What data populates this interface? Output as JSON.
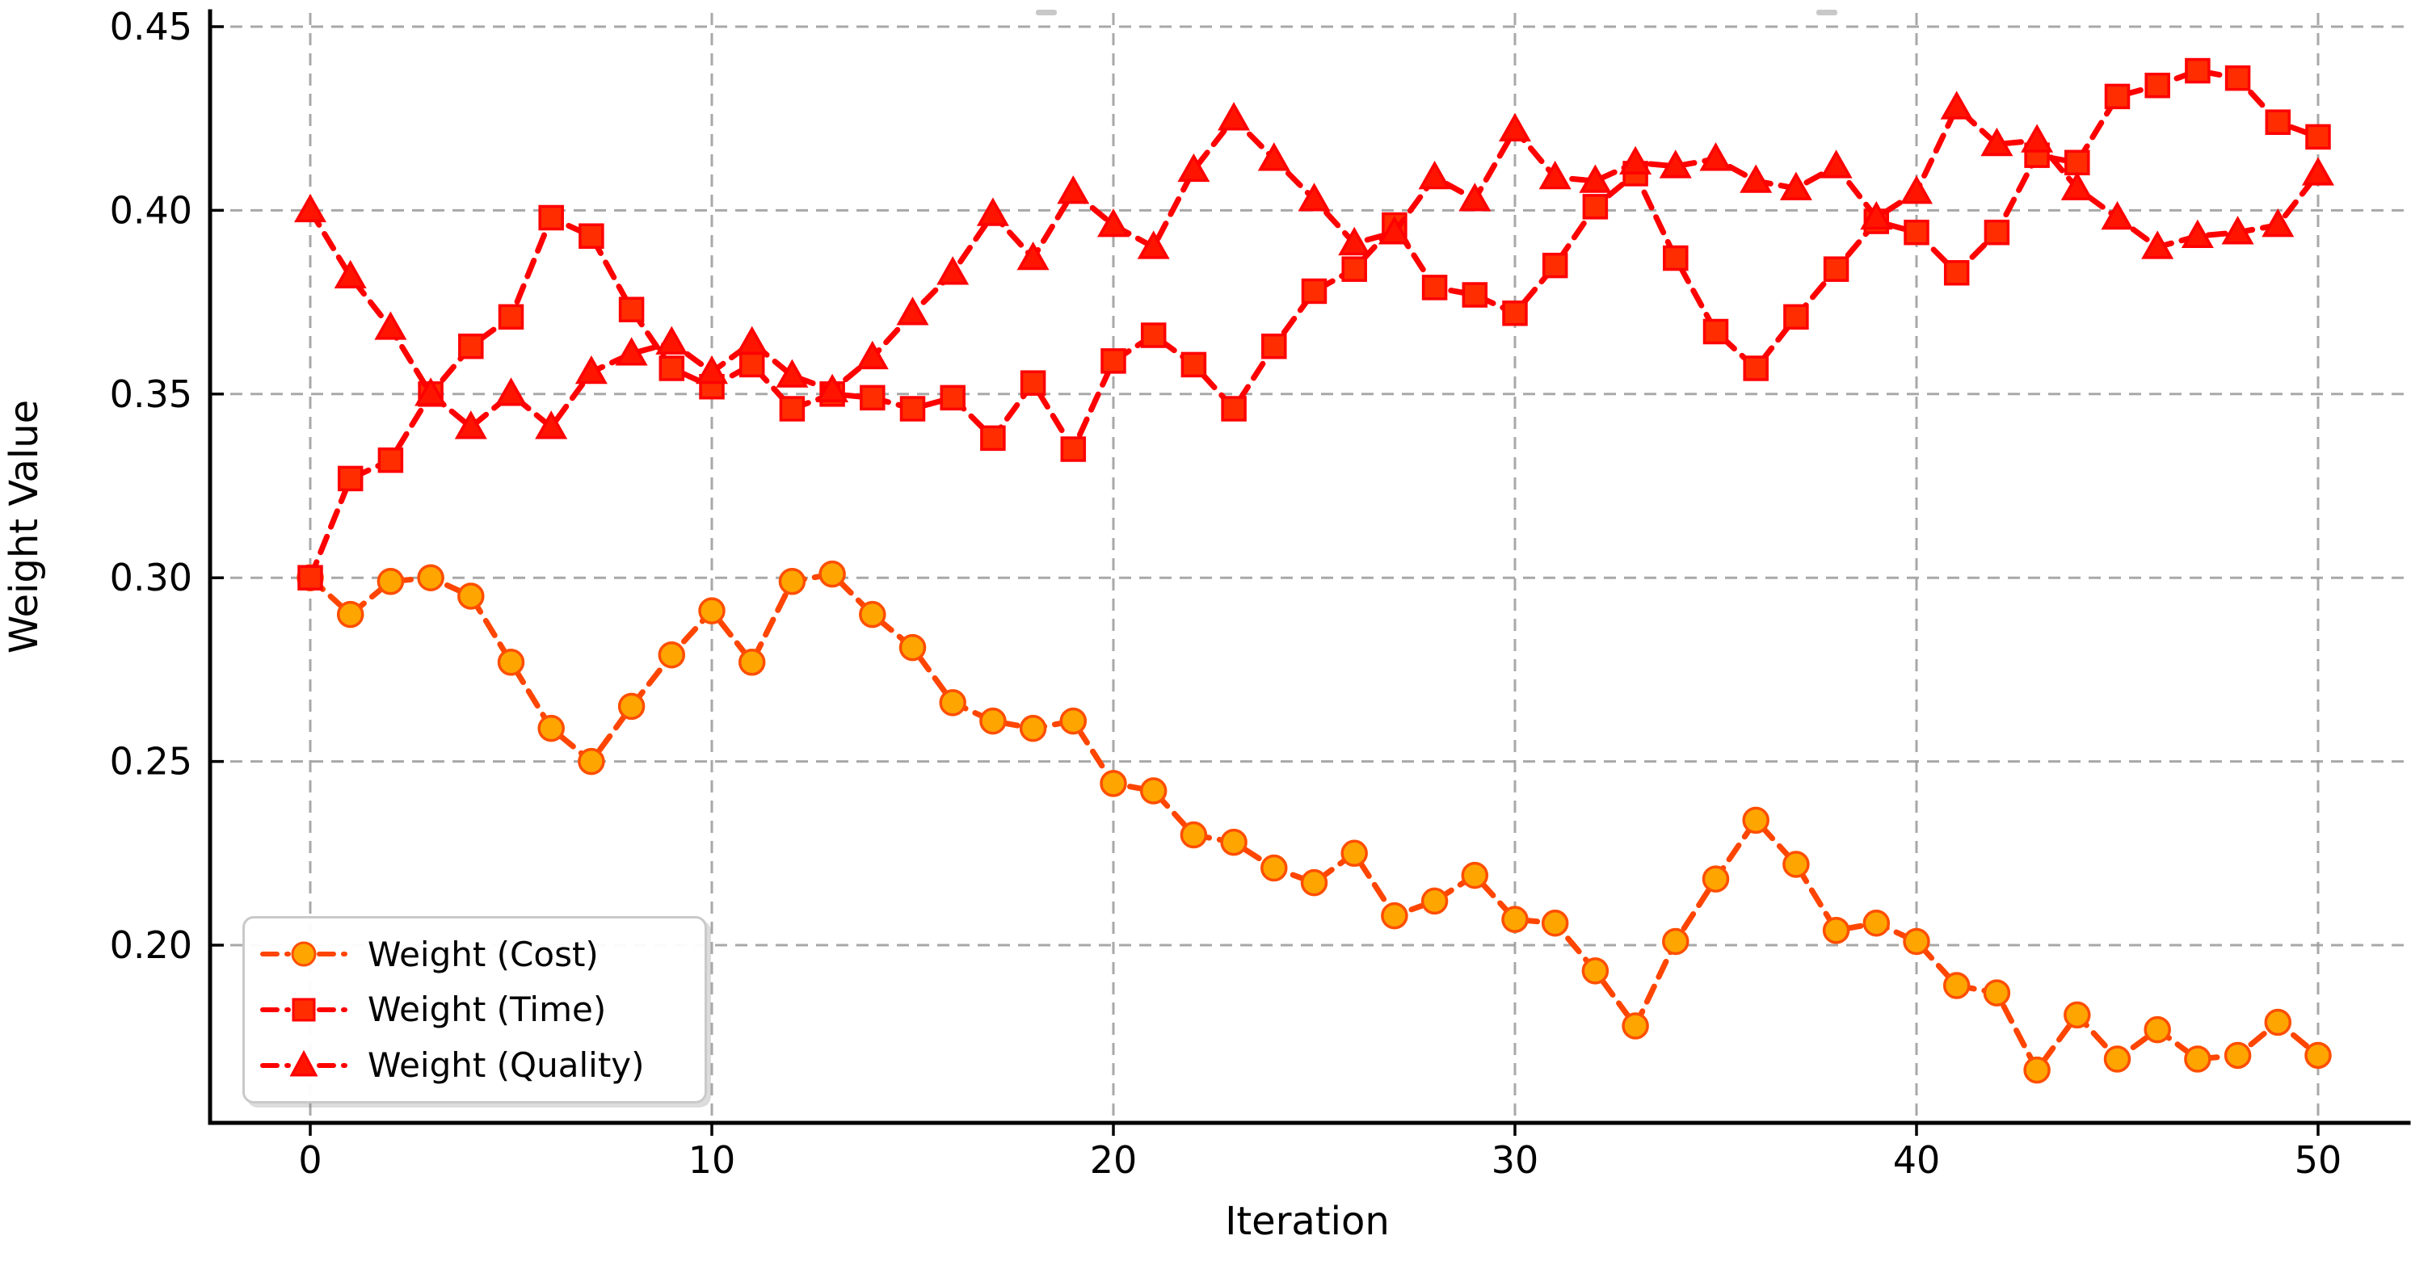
{
  "chart_data": {
    "type": "line",
    "title": "",
    "xlabel": "Iteration",
    "ylabel": "Weight Value",
    "x": [
      0,
      1,
      2,
      3,
      4,
      5,
      6,
      7,
      8,
      9,
      10,
      11,
      12,
      13,
      14,
      15,
      16,
      17,
      18,
      19,
      20,
      21,
      22,
      23,
      24,
      25,
      26,
      27,
      28,
      29,
      30,
      31,
      32,
      33,
      34,
      35,
      36,
      37,
      38,
      39,
      40,
      41,
      42,
      43,
      44,
      45,
      46,
      47,
      48,
      49,
      50
    ],
    "xticks": [
      0,
      10,
      20,
      30,
      40,
      50
    ],
    "yticks": [
      0.2,
      0.25,
      0.3,
      0.35,
      0.4,
      0.45
    ],
    "ytick_labels": [
      "0.20",
      "0.25",
      "0.30",
      "0.35",
      "0.40",
      "0.45"
    ],
    "xlim": [
      -2.5,
      52.2
    ],
    "ylim": [
      0.152,
      0.453
    ],
    "grid": true,
    "grid_style": "dashed",
    "legend_position": "lower left",
    "series": [
      {
        "id": "cost",
        "name": "Weight (Cost)",
        "marker": "circle",
        "line_color": "#FF4500",
        "marker_fill": "#FFA500",
        "marker_edge": "#FF4E00",
        "values": [
          0.3,
          0.29,
          0.299,
          0.3,
          0.295,
          0.277,
          0.259,
          0.25,
          0.265,
          0.279,
          0.291,
          0.277,
          0.299,
          0.301,
          0.29,
          0.281,
          0.266,
          0.261,
          0.259,
          0.261,
          0.244,
          0.242,
          0.23,
          0.228,
          0.221,
          0.217,
          0.225,
          0.208,
          0.212,
          0.219,
          0.207,
          0.206,
          0.193,
          0.178,
          0.201,
          0.218,
          0.234,
          0.222,
          0.204,
          0.206,
          0.201,
          0.189,
          0.187,
          0.166,
          0.181,
          0.169,
          0.177,
          0.169,
          0.17,
          0.179,
          0.17
        ]
      },
      {
        "id": "time",
        "name": "Weight (Time)",
        "marker": "square",
        "line_color": "#FF0000",
        "marker_fill": "#FF2D00",
        "marker_edge": "#FF0000",
        "values": [
          0.3,
          0.327,
          0.332,
          0.35,
          0.363,
          0.371,
          0.398,
          0.393,
          0.373,
          0.357,
          0.352,
          0.358,
          0.346,
          0.35,
          0.349,
          0.346,
          0.349,
          0.338,
          0.353,
          0.335,
          0.359,
          0.366,
          0.358,
          0.346,
          0.363,
          0.378,
          0.384,
          0.396,
          0.379,
          0.377,
          0.372,
          0.385,
          0.401,
          0.41,
          0.387,
          0.367,
          0.357,
          0.371,
          0.384,
          0.397,
          0.394,
          0.383,
          0.394,
          0.415,
          0.413,
          0.431,
          0.434,
          0.438,
          0.436,
          0.424,
          0.42
        ]
      },
      {
        "id": "quality",
        "name": "Weight (Quality)",
        "marker": "triangle",
        "line_color": "#FF0000",
        "marker_fill": "#FF1400",
        "marker_edge": "#FF0000",
        "values": [
          0.4,
          0.382,
          0.368,
          0.35,
          0.341,
          0.35,
          0.341,
          0.356,
          0.361,
          0.364,
          0.356,
          0.364,
          0.355,
          0.351,
          0.36,
          0.372,
          0.383,
          0.399,
          0.387,
          0.405,
          0.396,
          0.39,
          0.411,
          0.425,
          0.414,
          0.403,
          0.391,
          0.394,
          0.409,
          0.403,
          0.422,
          0.409,
          0.408,
          0.413,
          0.412,
          0.414,
          0.408,
          0.406,
          0.412,
          0.398,
          0.405,
          0.428,
          0.418,
          0.419,
          0.406,
          0.398,
          0.39,
          0.393,
          0.394,
          0.396,
          0.41
        ]
      }
    ]
  }
}
